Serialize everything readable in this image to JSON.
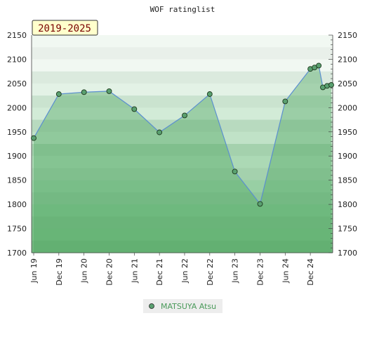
{
  "chart_data": {
    "type": "area",
    "title": "WOF ratinglist",
    "period_badge": "2019-2025",
    "ylim": [
      1700,
      2150
    ],
    "yticks": [
      1700,
      1750,
      1800,
      1850,
      1900,
      1950,
      2000,
      2050,
      2100,
      2150
    ],
    "xticks": [
      "Jun 19",
      "Dec 19",
      "Jun 20",
      "Dec 20",
      "Jun 21",
      "Dec 21",
      "Jun 22",
      "Dec 22",
      "Jun 23",
      "Dec 23",
      "Jun 24",
      "Dec 24"
    ],
    "legend_position": "bottom-center",
    "series": [
      {
        "name": "MATSUYA Atsu",
        "color": "#5aa070",
        "line_color": "#5b8fd0",
        "points": [
          {
            "t": 0,
            "y": 1937
          },
          {
            "t": 6,
            "y": 2028
          },
          {
            "t": 12,
            "y": 2032
          },
          {
            "t": 18,
            "y": 2034
          },
          {
            "t": 24,
            "y": 1997
          },
          {
            "t": 30,
            "y": 1949
          },
          {
            "t": 36,
            "y": 1984
          },
          {
            "t": 42,
            "y": 2028
          },
          {
            "t": 48,
            "y": 1868
          },
          {
            "t": 54,
            "y": 1801
          },
          {
            "t": 60,
            "y": 2013
          },
          {
            "t": 66,
            "y": 2080
          },
          {
            "t": 67,
            "y": 2083
          },
          {
            "t": 68,
            "y": 2087
          },
          {
            "t": 69,
            "y": 2042
          },
          {
            "t": 70,
            "y": 2045
          },
          {
            "t": 71,
            "y": 2047
          }
        ]
      }
    ]
  }
}
